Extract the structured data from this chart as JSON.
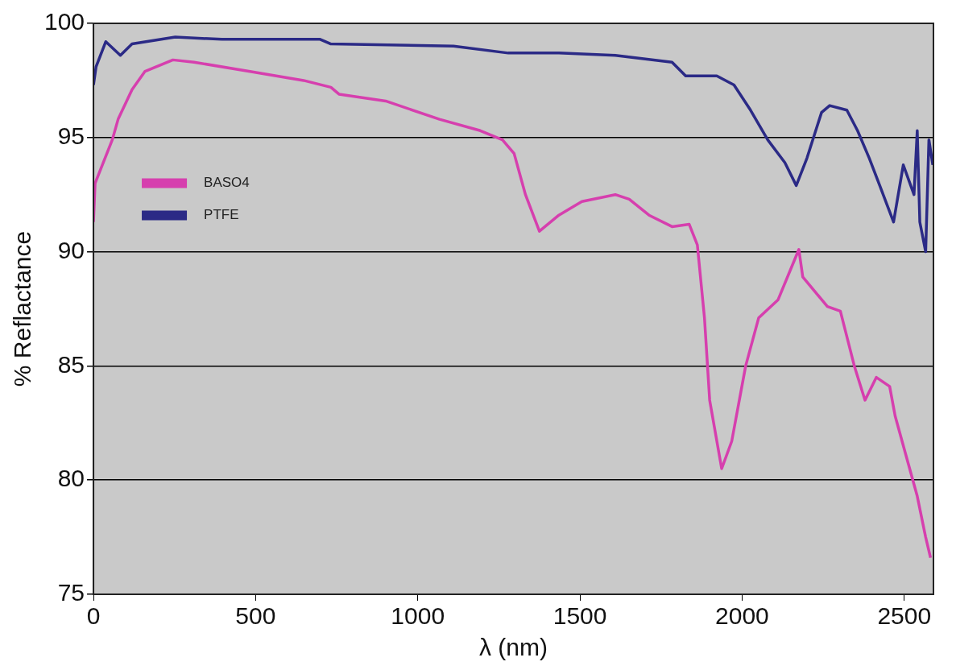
{
  "chart_data": {
    "type": "line",
    "xlabel": "λ (nm)",
    "ylabel": "% Reflactance",
    "xlim": [
      0,
      2590
    ],
    "xticks": [
      0,
      500,
      1000,
      1500,
      2000,
      2500
    ],
    "ylim": [
      75,
      100
    ],
    "yticks": [
      75,
      80,
      85,
      90,
      95,
      100
    ],
    "grid": "y",
    "legend": "top left",
    "marker": "none",
    "line_style": "solid",
    "series": [
      {
        "name": "BASO4",
        "color": "#d63fae",
        "x": [
          0,
          5,
          58,
          76,
          119,
          159,
          245,
          310,
          479,
          648,
          732,
          757,
          901,
          1067,
          1193,
          1261,
          1297,
          1332,
          1375,
          1435,
          1506,
          1609,
          1652,
          1713,
          1784,
          1837,
          1862,
          1884,
          1900,
          1937,
          1968,
          2011,
          2051,
          2111,
          2175,
          2187,
          2263,
          2303,
          2346,
          2379,
          2414,
          2455,
          2472,
          2505,
          2540,
          2566,
          2581
        ],
        "values": [
          91.3,
          93.0,
          94.9,
          95.8,
          97.1,
          97.9,
          98.4,
          98.3,
          97.9,
          97.5,
          97.2,
          96.9,
          96.6,
          95.8,
          95.3,
          94.9,
          94.3,
          92.5,
          90.9,
          91.6,
          92.2,
          92.5,
          92.3,
          91.6,
          91.1,
          91.2,
          90.3,
          87.1,
          83.5,
          80.5,
          81.7,
          85.0,
          87.1,
          87.9,
          90.1,
          88.9,
          87.6,
          87.4,
          85.0,
          83.5,
          84.5,
          84.1,
          82.8,
          81.1,
          79.3,
          77.5,
          76.6
        ]
      },
      {
        "name": "PTFE",
        "color": "#2b2a86",
        "x": [
          0,
          8,
          38,
          83,
          119,
          252,
          396,
          699,
          732,
          1110,
          1279,
          1435,
          1609,
          1784,
          1826,
          1922,
          1975,
          2026,
          2079,
          2132,
          2167,
          2200,
          2245,
          2270,
          2323,
          2356,
          2392,
          2427,
          2467,
          2497,
          2530,
          2540,
          2548,
          2566,
          2576,
          2588
        ],
        "values": [
          97.3,
          98.1,
          99.2,
          98.6,
          99.1,
          99.4,
          99.3,
          99.3,
          99.1,
          99.0,
          98.7,
          98.7,
          98.6,
          98.3,
          97.7,
          97.7,
          97.3,
          96.2,
          94.9,
          93.9,
          92.9,
          94.1,
          96.1,
          96.4,
          96.2,
          95.3,
          94.1,
          92.8,
          91.3,
          93.8,
          92.5,
          95.3,
          91.3,
          90.0,
          94.9,
          93.8
        ]
      }
    ]
  }
}
